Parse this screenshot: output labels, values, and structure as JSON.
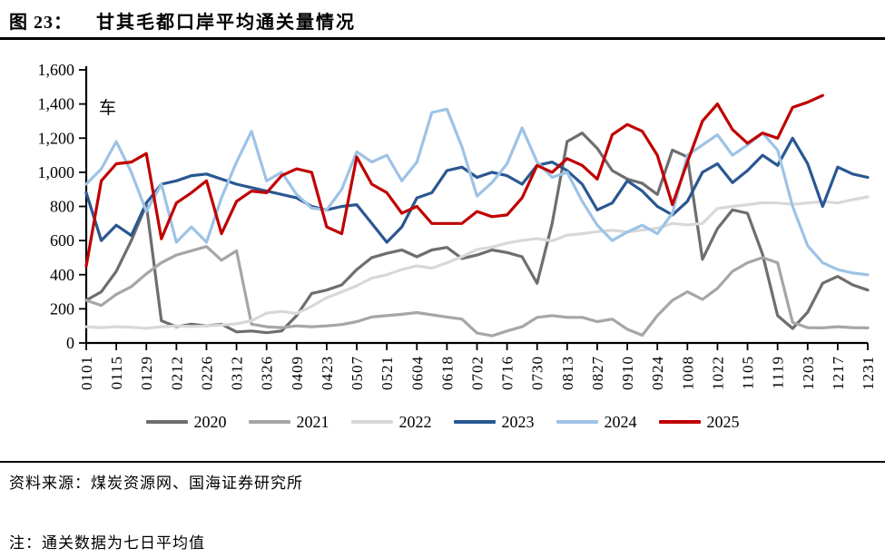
{
  "figure": {
    "label": "图 23：",
    "title": "甘其毛都口岸平均通关量情况"
  },
  "chart_data": {
    "type": "line",
    "unit_label": "车",
    "ylim": [
      0,
      1600
    ],
    "ytick_step": 200,
    "grid": false,
    "legend_position": "bottom",
    "x_tick_labels": [
      "0101",
      "0115",
      "0129",
      "0212",
      "0226",
      "0312",
      "0326",
      "0409",
      "0423",
      "0507",
      "0521",
      "0604",
      "0618",
      "0702",
      "0716",
      "0730",
      "0813",
      "0827",
      "0910",
      "0924",
      "1008",
      "1022",
      "1105",
      "1119",
      "1203",
      "1217",
      "1231"
    ],
    "point_dates": [
      "0101",
      "0108",
      "0115",
      "0122",
      "0129",
      "0205",
      "0212",
      "0219",
      "0226",
      "0305",
      "0312",
      "0319",
      "0326",
      "0402",
      "0409",
      "0416",
      "0423",
      "0430",
      "0507",
      "0514",
      "0521",
      "0528",
      "0604",
      "0611",
      "0618",
      "0625",
      "0702",
      "0709",
      "0716",
      "0723",
      "0730",
      "0806",
      "0813",
      "0820",
      "0827",
      "0903",
      "0910",
      "0917",
      "0924",
      "1001",
      "1008",
      "1015",
      "1022",
      "1029",
      "1105",
      "1112",
      "1119",
      "1126",
      "1203",
      "1210",
      "1217",
      "1224",
      "1231"
    ],
    "series": [
      {
        "name": "2020",
        "color": "#6e6e6e",
        "values": [
          250,
          300,
          420,
          600,
          810,
          130,
          95,
          110,
          100,
          110,
          65,
          70,
          60,
          70,
          160,
          290,
          310,
          340,
          430,
          500,
          525,
          545,
          505,
          545,
          560,
          495,
          515,
          545,
          530,
          505,
          350,
          700,
          1180,
          1230,
          1140,
          1010,
          960,
          935,
          870,
          1130,
          1090,
          490,
          670,
          780,
          760,
          520,
          160,
          85,
          180,
          350,
          390,
          340,
          310
        ]
      },
      {
        "name": "2021",
        "color": "#a6a6a6",
        "values": [
          250,
          220,
          285,
          330,
          405,
          470,
          515,
          540,
          565,
          485,
          540,
          110,
          95,
          90,
          100,
          95,
          100,
          108,
          125,
          152,
          160,
          168,
          178,
          165,
          152,
          140,
          58,
          42,
          70,
          95,
          150,
          160,
          150,
          150,
          125,
          140,
          80,
          45,
          160,
          250,
          300,
          255,
          320,
          420,
          470,
          500,
          470,
          120,
          90,
          88,
          95,
          90,
          88
        ]
      },
      {
        "name": "2022",
        "color": "#d8d8d8",
        "values": [
          95,
          90,
          95,
          92,
          86,
          95,
          100,
          96,
          100,
          105,
          112,
          130,
          175,
          185,
          172,
          215,
          265,
          300,
          335,
          380,
          400,
          430,
          452,
          438,
          470,
          505,
          548,
          562,
          585,
          600,
          612,
          598,
          632,
          640,
          652,
          660,
          650,
          662,
          672,
          700,
          692,
          700,
          788,
          800,
          810,
          822,
          820,
          812,
          820,
          828,
          820,
          840,
          856
        ]
      },
      {
        "name": "2023",
        "color": "#2a5791",
        "values": [
          880,
          600,
          690,
          630,
          820,
          930,
          950,
          980,
          990,
          960,
          930,
          910,
          890,
          870,
          850,
          800,
          780,
          800,
          810,
          700,
          590,
          680,
          850,
          880,
          1010,
          1030,
          970,
          1000,
          980,
          930,
          1040,
          1060,
          1010,
          930,
          780,
          820,
          950,
          890,
          800,
          750,
          830,
          1000,
          1050,
          940,
          1010,
          1100,
          1040,
          1200,
          1050,
          800,
          1030,
          990,
          970
        ]
      },
      {
        "name": "2024",
        "color": "#9dc3e6",
        "values": [
          930,
          1020,
          1180,
          1000,
          770,
          930,
          590,
          680,
          590,
          850,
          1060,
          1240,
          950,
          1000,
          870,
          790,
          780,
          900,
          1120,
          1060,
          1100,
          950,
          1060,
          1350,
          1370,
          1150,
          860,
          940,
          1050,
          1260,
          1060,
          970,
          1000,
          830,
          690,
          600,
          650,
          690,
          640,
          760,
          1100,
          1160,
          1220,
          1100,
          1160,
          1230,
          1130,
          800,
          570,
          470,
          430,
          410,
          400
        ]
      },
      {
        "name": "2025",
        "color": "#c00000",
        "values": [
          450,
          950,
          1050,
          1060,
          1110,
          610,
          820,
          880,
          950,
          640,
          830,
          890,
          880,
          980,
          1020,
          1000,
          680,
          640,
          1090,
          930,
          880,
          760,
          800,
          700,
          700,
          700,
          770,
          740,
          750,
          850,
          1040,
          1000,
          1080,
          1040,
          960,
          1220,
          1280,
          1240,
          1100,
          810,
          1060,
          1300,
          1400,
          1250,
          1170,
          1230,
          1200,
          1380,
          1410,
          1450,
          null,
          null,
          null
        ]
      }
    ]
  },
  "footer": {
    "source": "资料来源：煤炭资源网、国海证券研究所",
    "note": "注：通关数据为七日平均值"
  }
}
